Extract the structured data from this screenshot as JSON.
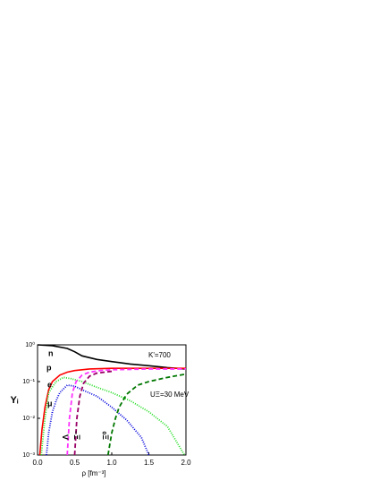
{
  "chart_data": {
    "type": "line",
    "xlabel": "ρ [fm⁻³]",
    "ylabel": "Yᵢ",
    "log_y": true,
    "xlim": [
      0,
      2
    ],
    "ylim": [
      0.001,
      1
    ],
    "xticks": [
      {
        "value": 0,
        "label": "0.0"
      },
      {
        "value": 0.5,
        "label": "0.5"
      },
      {
        "value": 1,
        "label": "1.0"
      },
      {
        "value": 1.5,
        "label": "1.5"
      },
      {
        "value": 2,
        "label": "2.0"
      }
    ],
    "yticks": [
      {
        "value": 0.001,
        "label": "10⁻³"
      },
      {
        "value": 0.01,
        "label": "10⁻²"
      },
      {
        "value": 0.1,
        "label": "10⁻¹"
      },
      {
        "value": 1,
        "label": "10⁰"
      }
    ],
    "annotations": [
      "K'=700",
      "UΞ=30 MeV"
    ],
    "series": [
      {
        "name": "n",
        "color": "#000000",
        "dash": "solid",
        "x": [
          0.0,
          0.2,
          0.4,
          0.5,
          0.6,
          0.8,
          1.0,
          1.25,
          1.5,
          1.75,
          2.0
        ],
        "values": [
          1.0,
          0.95,
          0.8,
          0.65,
          0.5,
          0.4,
          0.35,
          0.3,
          0.27,
          0.24,
          0.22
        ]
      },
      {
        "name": "p",
        "color": "#ff0000",
        "dash": "solid",
        "x": [
          0.03,
          0.06,
          0.1,
          0.15,
          0.2,
          0.3,
          0.4,
          0.5,
          0.7,
          1.0,
          1.5,
          2.0
        ],
        "values": [
          0.001,
          0.005,
          0.02,
          0.06,
          0.1,
          0.15,
          0.18,
          0.2,
          0.22,
          0.23,
          0.23,
          0.23
        ]
      },
      {
        "name": "e",
        "color": "#22dd22",
        "dash": "dot",
        "x": [
          0.05,
          0.1,
          0.15,
          0.25,
          0.35,
          0.45,
          0.6,
          0.8,
          1.0,
          1.25,
          1.5,
          1.75,
          1.98
        ],
        "values": [
          0.001,
          0.01,
          0.05,
          0.1,
          0.13,
          0.12,
          0.1,
          0.07,
          0.05,
          0.03,
          0.015,
          0.006,
          0.001
        ]
      },
      {
        "name": "μ",
        "color": "#0000dd",
        "dash": "dot",
        "x": [
          0.12,
          0.15,
          0.2,
          0.25,
          0.3,
          0.4,
          0.5,
          0.6,
          0.8,
          1.0,
          1.2,
          1.4,
          1.5
        ],
        "values": [
          0.001,
          0.004,
          0.015,
          0.03,
          0.05,
          0.08,
          0.075,
          0.06,
          0.04,
          0.02,
          0.009,
          0.003,
          0.001
        ]
      },
      {
        "name": "Λ",
        "color": "#ff33ff",
        "dash": "dash",
        "x": [
          0.4,
          0.43,
          0.47,
          0.52,
          0.6,
          0.7,
          0.85,
          1.0,
          1.5,
          2.0
        ],
        "values": [
          0.001,
          0.01,
          0.05,
          0.1,
          0.15,
          0.18,
          0.2,
          0.21,
          0.22,
          0.22
        ]
      },
      {
        "name": "Ξ⁻",
        "color": "#990066",
        "dash": "dash",
        "x": [
          0.5,
          0.53,
          0.57,
          0.62,
          0.7,
          0.8,
          1.0
        ],
        "values": [
          0.001,
          0.01,
          0.04,
          0.09,
          0.14,
          0.17,
          0.19
        ]
      },
      {
        "name": "Ξ⁰",
        "color": "#007700",
        "dash": "dash",
        "x": [
          0.95,
          1.0,
          1.05,
          1.1,
          1.2,
          1.35,
          1.5,
          1.75,
          2.0
        ],
        "values": [
          0.001,
          0.004,
          0.01,
          0.02,
          0.045,
          0.08,
          0.1,
          0.13,
          0.16
        ]
      }
    ]
  }
}
